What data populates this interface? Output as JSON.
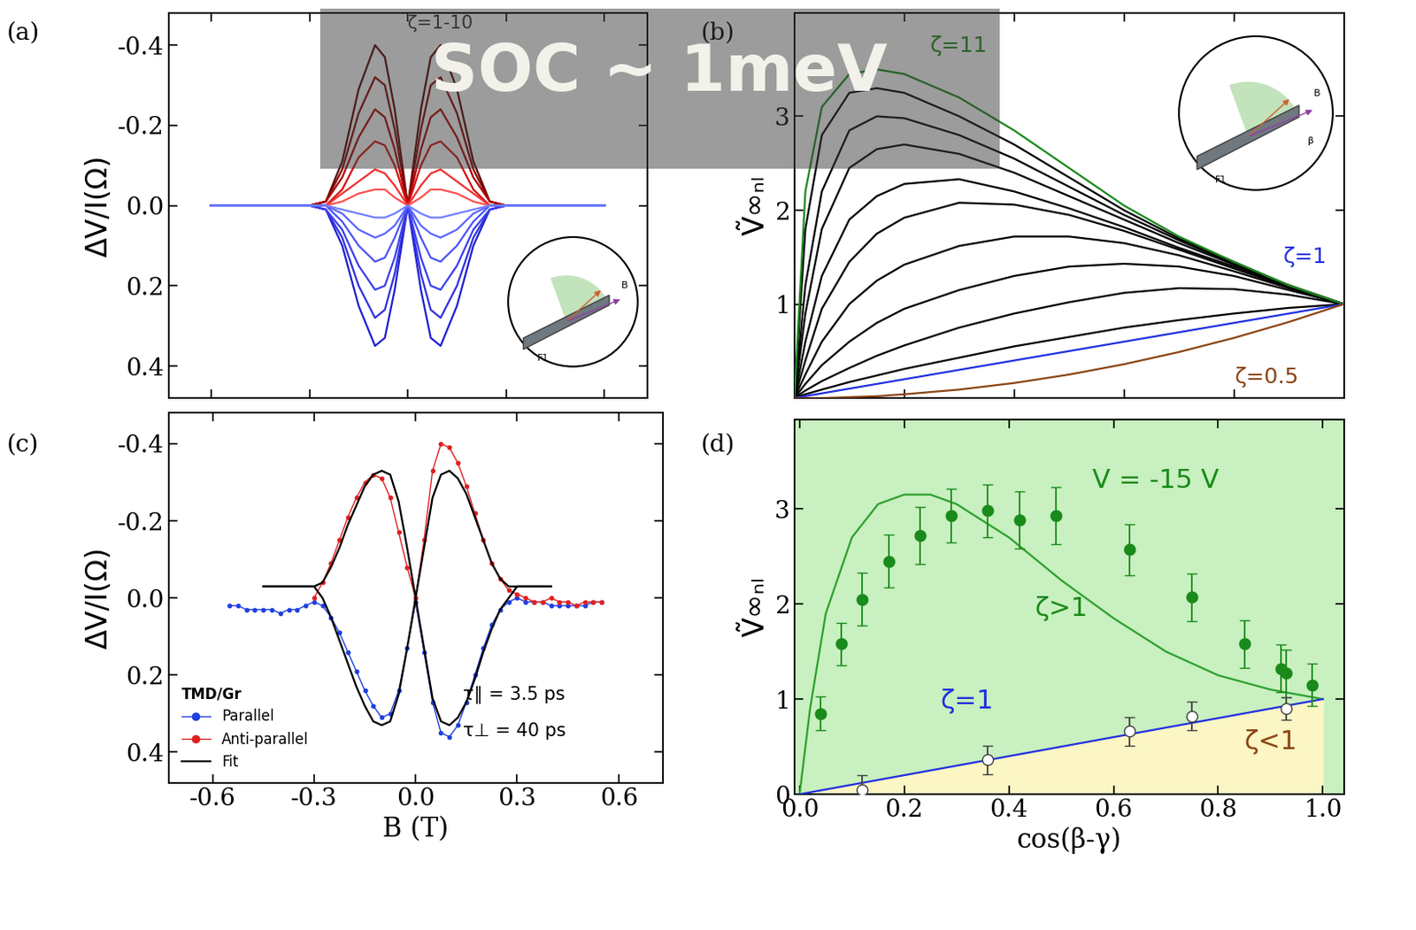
{
  "banner": "SOC ~ 1meV",
  "chart_data": [
    {
      "type": "line",
      "panel_label": "(a)",
      "ylabel": "ΔV/I(Ω)",
      "xlim": [
        -0.73,
        0.73
      ],
      "ylim": [
        0.48,
        -0.48
      ],
      "xticks": [
        -0.6,
        -0.3,
        0.0,
        0.3,
        0.6
      ],
      "yticks": [
        -0.4,
        -0.2,
        0.0,
        0.2,
        0.4
      ],
      "tick_labels": "y",
      "annotations": [
        {
          "text": "ζ=1-10",
          "color": "#303030"
        }
      ],
      "inset_labels": [
        "B",
        "F1"
      ],
      "x": [
        -0.6,
        -0.4,
        -0.3,
        -0.25,
        -0.2,
        -0.15,
        -0.1,
        -0.07,
        -0.04,
        0.0,
        0.04,
        0.07,
        0.1,
        0.15,
        0.2,
        0.25,
        0.3,
        0.4,
        0.6
      ],
      "series": [
        {
          "color": "#5a0000",
          "values": [
            0,
            0,
            0,
            -0.01,
            -0.11,
            -0.29,
            -0.4,
            -0.37,
            -0.24,
            0,
            -0.24,
            -0.37,
            -0.4,
            -0.29,
            -0.11,
            -0.01,
            0,
            0,
            0
          ]
        },
        {
          "color": "#8b0000",
          "values": [
            0,
            0,
            0,
            -0.01,
            -0.09,
            -0.23,
            -0.32,
            -0.3,
            -0.19,
            0,
            -0.19,
            -0.3,
            -0.32,
            -0.23,
            -0.09,
            -0.01,
            0,
            0,
            0
          ]
        },
        {
          "color": "#b00000",
          "values": [
            0,
            0,
            0,
            -0.01,
            -0.07,
            -0.17,
            -0.24,
            -0.22,
            -0.14,
            0,
            -0.14,
            -0.22,
            -0.24,
            -0.17,
            -0.07,
            -0.01,
            0,
            0,
            0
          ]
        },
        {
          "color": "#d81010",
          "values": [
            0,
            0,
            0,
            0,
            -0.04,
            -0.12,
            -0.16,
            -0.15,
            -0.1,
            0,
            -0.1,
            -0.15,
            -0.16,
            -0.12,
            -0.04,
            0,
            0,
            0,
            0
          ]
        },
        {
          "color": "#f03030",
          "values": [
            0,
            0,
            0,
            0,
            -0.03,
            -0.06,
            -0.09,
            -0.08,
            -0.05,
            0,
            -0.05,
            -0.08,
            -0.09,
            -0.06,
            -0.03,
            0,
            0,
            0,
            0
          ]
        },
        {
          "color": "#ff5050",
          "values": [
            0,
            0,
            0,
            0,
            -0.01,
            -0.03,
            -0.04,
            -0.04,
            -0.02,
            0,
            -0.02,
            -0.04,
            -0.04,
            -0.03,
            -0.01,
            0,
            0,
            0,
            0
          ]
        },
        {
          "color": "#2020d0",
          "values": [
            0,
            0,
            0,
            0.01,
            0.1,
            0.25,
            0.35,
            0.33,
            0.21,
            0,
            0.21,
            0.33,
            0.35,
            0.25,
            0.1,
            0.01,
            0,
            0,
            0
          ]
        },
        {
          "color": "#3030e0",
          "values": [
            0,
            0,
            0,
            0.01,
            0.08,
            0.2,
            0.28,
            0.26,
            0.17,
            0,
            0.17,
            0.26,
            0.28,
            0.2,
            0.08,
            0.01,
            0,
            0,
            0
          ]
        },
        {
          "color": "#3a40ee",
          "values": [
            0,
            0,
            0,
            0.01,
            0.06,
            0.15,
            0.21,
            0.2,
            0.13,
            0,
            0.13,
            0.2,
            0.21,
            0.15,
            0.06,
            0.01,
            0,
            0,
            0
          ]
        },
        {
          "color": "#4a55f5",
          "values": [
            0,
            0,
            0,
            0,
            0.04,
            0.1,
            0.14,
            0.13,
            0.08,
            0,
            0.08,
            0.13,
            0.14,
            0.1,
            0.04,
            0,
            0,
            0,
            0
          ]
        },
        {
          "color": "#5a66ff",
          "values": [
            0,
            0,
            0,
            0,
            0.02,
            0.06,
            0.08,
            0.07,
            0.05,
            0,
            0.05,
            0.07,
            0.08,
            0.06,
            0.02,
            0,
            0,
            0,
            0
          ]
        },
        {
          "color": "#7080ff",
          "values": [
            0,
            0,
            0,
            0,
            0.01,
            0.02,
            0.03,
            0.03,
            0.02,
            0,
            0.02,
            0.03,
            0.03,
            0.02,
            0.01,
            0,
            0,
            0,
            0
          ]
        }
      ]
    },
    {
      "type": "line",
      "panel_label": "(b)",
      "ylabel": "Ṽ∞ₙₗ",
      "xlim": [
        0.0,
        1.0
      ],
      "ylim": [
        0,
        4.1
      ],
      "xticks": [
        0.0,
        0.2,
        0.4,
        0.6,
        0.8,
        1.0
      ],
      "yticks": [
        1,
        2,
        3
      ],
      "tick_labels": "y",
      "annotations": [
        {
          "text": "ζ=11",
          "color": "#1a8a1a"
        },
        {
          "text": "ζ=1",
          "color": "#2030e0"
        },
        {
          "text": "ζ=0.5",
          "color": "#8b4513"
        }
      ],
      "inset_labels": [
        "B",
        "β",
        "F1"
      ],
      "x": [
        0.0,
        0.02,
        0.05,
        0.1,
        0.15,
        0.2,
        0.3,
        0.4,
        0.5,
        0.6,
        0.7,
        0.8,
        0.9,
        1.0
      ],
      "series": [
        {
          "color": "#000000",
          "values": [
            0,
            1.8,
            2.8,
            3.25,
            3.3,
            3.25,
            3.0,
            2.7,
            2.35,
            2.0,
            1.7,
            1.45,
            1.2,
            1.0
          ]
        },
        {
          "color": "#000000",
          "values": [
            0,
            1.2,
            2.2,
            2.85,
            3.0,
            2.98,
            2.8,
            2.55,
            2.25,
            1.95,
            1.68,
            1.43,
            1.2,
            1.0
          ]
        },
        {
          "color": "#000000",
          "values": [
            0,
            0.9,
            1.8,
            2.45,
            2.65,
            2.7,
            2.6,
            2.4,
            2.15,
            1.9,
            1.65,
            1.42,
            1.2,
            1.0
          ]
        },
        {
          "color": "#000000",
          "values": [
            0,
            0.6,
            1.3,
            1.9,
            2.15,
            2.28,
            2.33,
            2.2,
            2.02,
            1.82,
            1.6,
            1.4,
            1.19,
            1.0
          ]
        },
        {
          "color": "#000000",
          "values": [
            0,
            0.4,
            0.95,
            1.45,
            1.75,
            1.92,
            2.08,
            2.06,
            1.95,
            1.78,
            1.58,
            1.38,
            1.18,
            1.0
          ]
        },
        {
          "color": "#000000",
          "values": [
            0,
            0.25,
            0.6,
            1.0,
            1.25,
            1.42,
            1.62,
            1.72,
            1.72,
            1.65,
            1.52,
            1.35,
            1.17,
            1.0
          ]
        },
        {
          "color": "#000000",
          "values": [
            0,
            0.15,
            0.35,
            0.6,
            0.8,
            0.95,
            1.15,
            1.3,
            1.4,
            1.43,
            1.4,
            1.3,
            1.15,
            1.0
          ]
        },
        {
          "color": "#000000",
          "values": [
            0,
            0.08,
            0.18,
            0.32,
            0.45,
            0.56,
            0.75,
            0.9,
            1.02,
            1.12,
            1.17,
            1.16,
            1.1,
            1.0
          ]
        },
        {
          "color": "#000000",
          "values": [
            0,
            0.04,
            0.09,
            0.17,
            0.24,
            0.31,
            0.43,
            0.55,
            0.65,
            0.75,
            0.83,
            0.9,
            0.96,
            1.0
          ]
        },
        {
          "color": "#1a8a1a",
          "values": [
            0,
            2.2,
            3.1,
            3.45,
            3.5,
            3.45,
            3.2,
            2.85,
            2.45,
            2.05,
            1.72,
            1.45,
            1.2,
            1.0
          ]
        },
        {
          "color": "#2030e0",
          "values": [
            0,
            0.02,
            0.05,
            0.1,
            0.15,
            0.2,
            0.3,
            0.4,
            0.5,
            0.6,
            0.7,
            0.8,
            0.9,
            1.0
          ]
        },
        {
          "color": "#8b4513",
          "values": [
            0,
            0,
            0,
            0.01,
            0.02,
            0.04,
            0.09,
            0.16,
            0.25,
            0.36,
            0.49,
            0.64,
            0.81,
            1.0
          ]
        }
      ]
    },
    {
      "type": "line",
      "panel_label": "(c)",
      "ylabel": "ΔV/I(Ω)",
      "xlabel": "B (T)",
      "xlim": [
        -0.73,
        0.73
      ],
      "ylim": [
        0.48,
        -0.48
      ],
      "xticks": [
        -0.6,
        -0.3,
        0.0,
        0.3,
        0.6
      ],
      "yticks": [
        -0.4,
        -0.2,
        0.0,
        0.2,
        0.4
      ],
      "legend": "lower left",
      "legend_title": "TMD/Gr",
      "annotations": [
        {
          "text": "τ∥ = 3.5 ps",
          "color": "#000000"
        },
        {
          "text": "τ⊥ = 40 ps",
          "color": "#000000"
        }
      ],
      "x": [
        -0.55,
        -0.525,
        -0.5,
        -0.475,
        -0.45,
        -0.425,
        -0.4,
        -0.375,
        -0.35,
        -0.325,
        -0.3,
        -0.275,
        -0.25,
        -0.225,
        -0.2,
        -0.175,
        -0.15,
        -0.125,
        -0.1,
        -0.075,
        -0.05,
        -0.025,
        0.0,
        0.025,
        0.05,
        0.075,
        0.1,
        0.125,
        0.15,
        0.175,
        0.2,
        0.225,
        0.25,
        0.275,
        0.3,
        0.325,
        0.35,
        0.375,
        0.4,
        0.425,
        0.45,
        0.475,
        0.5,
        0.525,
        0.55
      ],
      "series": [
        {
          "name": "Parallel",
          "color": "#2040e0",
          "marker": "circle",
          "line_style": "solid",
          "values": [
            0.02,
            0.02,
            0.03,
            0.03,
            0.03,
            0.03,
            0.04,
            0.03,
            0.03,
            0.02,
            0.01,
            0.02,
            0.05,
            0.09,
            0.14,
            0.19,
            0.24,
            0.28,
            0.31,
            0.3,
            0.24,
            0.13,
            0.01,
            0.14,
            0.27,
            0.35,
            0.36,
            0.33,
            0.27,
            0.2,
            0.13,
            0.07,
            0.03,
            0.01,
            0.0,
            0.01,
            0.01,
            0.01,
            0.02,
            0.02,
            0.02,
            0.02,
            0.02,
            0.01,
            0.01
          ]
        },
        {
          "name": "Anti-parallel",
          "color": "#e02020",
          "marker": "circle",
          "line_style": "solid",
          "values": [
            null,
            null,
            null,
            null,
            null,
            null,
            null,
            null,
            null,
            null,
            0.0,
            -0.04,
            -0.09,
            -0.15,
            -0.21,
            -0.26,
            -0.3,
            -0.32,
            -0.31,
            -0.26,
            -0.17,
            -0.08,
            0.0,
            -0.15,
            -0.33,
            -0.4,
            -0.39,
            -0.35,
            -0.29,
            -0.22,
            -0.15,
            -0.09,
            -0.05,
            -0.02,
            -0.01,
            0.0,
            0.01,
            0.01,
            0.0,
            0.01,
            0.01,
            0.02,
            0.01,
            0.01,
            0.01
          ]
        },
        {
          "name": "Fit",
          "color": "#000000",
          "marker": "none",
          "line_style": "solid",
          "values": [
            null,
            null,
            null,
            null,
            -0.03,
            -0.03,
            -0.03,
            -0.03,
            -0.03,
            -0.03,
            -0.03,
            -0.04,
            -0.08,
            -0.13,
            -0.19,
            -0.24,
            -0.29,
            -0.32,
            -0.33,
            -0.32,
            -0.25,
            -0.13,
            0.0,
            -0.13,
            -0.26,
            -0.32,
            -0.33,
            -0.31,
            -0.27,
            -0.21,
            -0.15,
            -0.09,
            -0.05,
            -0.03,
            -0.03,
            -0.03,
            -0.03,
            -0.03,
            -0.03,
            null,
            null,
            null,
            null,
            null,
            null
          ]
        },
        {
          "color": "#000000",
          "marker": "none",
          "line_style": "solid",
          "values": [
            null,
            null,
            null,
            null,
            -0.03,
            -0.03,
            -0.03,
            -0.03,
            -0.03,
            -0.03,
            -0.03,
            0.0,
            0.05,
            0.11,
            0.17,
            0.23,
            0.28,
            0.32,
            0.33,
            0.32,
            0.25,
            0.13,
            0.0,
            0.13,
            0.26,
            0.32,
            0.33,
            0.31,
            0.27,
            0.21,
            0.14,
            0.08,
            0.03,
            0.0,
            -0.03,
            -0.03,
            -0.03,
            -0.03,
            -0.03,
            null,
            null,
            null,
            null,
            null,
            null
          ]
        }
      ]
    },
    {
      "type": "scatter",
      "panel_label": "(d)",
      "ylabel": "Ṽ∞ₙₗ",
      "xlabel": "cos(β-γ)",
      "xlim": [
        -0.01,
        1.04
      ],
      "ylim": [
        0,
        3.94
      ],
      "xticks": [
        0.0,
        0.2,
        0.4,
        0.6,
        0.8,
        1.0
      ],
      "yticks": [
        0,
        1,
        2,
        3
      ],
      "annotations": [
        {
          "text": "V = -15 V",
          "color": "#1a8a1a"
        },
        {
          "text": "ζ>1",
          "color": "#1a8a1a"
        },
        {
          "text": "ζ=1",
          "color": "#2030e0"
        },
        {
          "text": "ζ<1",
          "color": "#8b4513"
        }
      ],
      "series": [
        {
          "type": "line",
          "color": "#2ea02e",
          "marker": "none",
          "line_style": "solid",
          "x": [
            0.0,
            0.02,
            0.05,
            0.1,
            0.15,
            0.2,
            0.25,
            0.3,
            0.4,
            0.5,
            0.6,
            0.7,
            0.8,
            0.9,
            1.0
          ],
          "values": [
            0,
            0.9,
            1.9,
            2.7,
            3.05,
            3.15,
            3.15,
            3.05,
            2.7,
            2.25,
            1.85,
            1.5,
            1.25,
            1.1,
            1.0
          ]
        },
        {
          "type": "scatter",
          "color": "#1a8a1a",
          "marker": "circle",
          "x": [
            0.04,
            0.08,
            0.12,
            0.17,
            0.23,
            0.29,
            0.36,
            0.42,
            0.49,
            0.63,
            0.75,
            0.85,
            0.92,
            0.93,
            0.98
          ],
          "values": [
            0.85,
            1.58,
            2.05,
            2.45,
            2.72,
            2.93,
            2.98,
            2.88,
            2.93,
            2.57,
            2.07,
            1.58,
            1.32,
            1.27,
            1.15
          ],
          "errors": [
            0.18,
            0.22,
            0.28,
            0.28,
            0.3,
            0.28,
            0.28,
            0.3,
            0.3,
            0.27,
            0.25,
            0.25,
            0.25,
            0.25,
            0.22
          ]
        },
        {
          "type": "line",
          "color": "#2030e0",
          "marker": "none",
          "line_style": "solid",
          "x": [
            0.0,
            1.0
          ],
          "values": [
            0.0,
            1.0
          ]
        },
        {
          "type": "scatter",
          "color": "#404040",
          "marker": "open_circle",
          "x": [
            0.12,
            0.36,
            0.63,
            0.75,
            0.93
          ],
          "values": [
            0.05,
            0.36,
            0.66,
            0.82,
            0.9
          ],
          "errors": [
            0.15,
            0.15,
            0.15,
            0.15,
            0.12
          ]
        }
      ]
    }
  ]
}
